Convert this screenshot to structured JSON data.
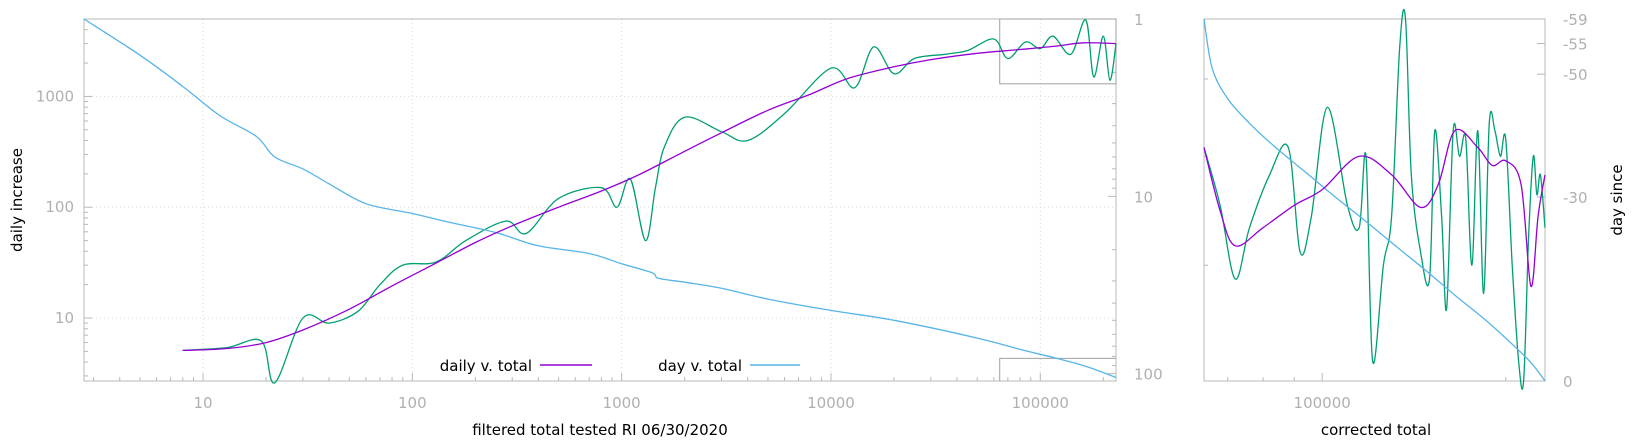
{
  "chart_data": [
    {
      "type": "line",
      "xlabel": "filtered total tested RI 06/30/2020",
      "ylabel": "daily increase",
      "y2label": "",
      "xscale": "log",
      "yscale": "log",
      "y2scale": "log",
      "xlim": [
        2.7,
        230000
      ],
      "ylim": [
        2.7,
        5000
      ],
      "y2lim": [
        1,
        110
      ],
      "x_ticks": [
        10,
        100,
        1000,
        10000,
        100000
      ],
      "x_tick_labels": [
        "10",
        "100",
        "1000",
        "10000",
        "100000"
      ],
      "y_ticks": [
        10,
        100,
        1000
      ],
      "y_tick_labels": [
        "10",
        "100",
        "1000"
      ],
      "y2_ticks": [
        1,
        10,
        100
      ],
      "y2_tick_labels": [
        "1",
        "10",
        "100"
      ],
      "grid": true,
      "legend_position": "bottom-center",
      "series": [
        {
          "name": "daily v. total",
          "axis": "left",
          "color": "#9400d3",
          "x": [
            8,
            13,
            20,
            30,
            50,
            80,
            120,
            200,
            300,
            500,
            800,
            1200,
            2000,
            3000,
            5000,
            8000,
            12000,
            20000,
            30000,
            50000,
            80000,
            120000,
            160000,
            230000
          ],
          "y": [
            5.1,
            5.3,
            6.0,
            7.8,
            12.0,
            19.5,
            29.0,
            48.0,
            68.0,
            100.0,
            140.0,
            195.0,
            320.0,
            470.0,
            750.0,
            1050.0,
            1450.0,
            1850.0,
            2150.0,
            2450.0,
            2650.0,
            2850.0,
            3050.0,
            3000.0
          ]
        },
        {
          "name": "",
          "axis": "left",
          "color": "#009e73",
          "x": [
            8,
            13,
            19,
            22,
            30,
            40,
            55,
            70,
            90,
            130,
            180,
            280,
            350,
            500,
            800,
            950,
            1100,
            1300,
            1450,
            1600,
            2000,
            3000,
            4000,
            6000,
            10000,
            13000,
            16000,
            20000,
            25000,
            35000,
            45000,
            60000,
            70000,
            85000,
            100000,
            115000,
            140000,
            165000,
            180000,
            200000,
            215000,
            230000
          ],
          "y": [
            5.1,
            5.4,
            6.2,
            2.6,
            10.0,
            9.0,
            11.5,
            20.0,
            30.0,
            32.0,
            50.0,
            75.0,
            58.0,
            120.0,
            150.0,
            100.0,
            180.0,
            50.0,
            150.0,
            350.0,
            650.0,
            480.0,
            400.0,
            700.0,
            1800.0,
            1200.0,
            2800.0,
            1600.0,
            2200.0,
            2400.0,
            2600.0,
            3300.0,
            2200.0,
            3100.0,
            2700.0,
            3500.0,
            2400.0,
            4900.0,
            1500.0,
            3500.0,
            1400.0,
            3000.0
          ]
        },
        {
          "name": "day v. total",
          "axis": "right",
          "color": "#56b4e9",
          "x": [
            2.7,
            5,
            8,
            12,
            18,
            22,
            30,
            40,
            60,
            100,
            150,
            250,
            400,
            700,
            1000,
            1400,
            1500,
            2000,
            3000,
            5000,
            10000,
            20000,
            50000,
            80000,
            120000,
            170000,
            230000
          ],
          "y": [
            1,
            1.6,
            2.4,
            3.5,
            4.6,
            6.0,
            7.0,
            8.5,
            11.0,
            12.5,
            14.0,
            16.0,
            19.0,
            21.0,
            24.0,
            27.0,
            29.0,
            30.5,
            33.0,
            38.0,
            44.0,
            50.0,
            63.0,
            73.0,
            82.0,
            92.0,
            105.0
          ]
        }
      ]
    },
    {
      "type": "line",
      "xlabel": "corrected total",
      "ylabel": "",
      "y2label": "day since",
      "xscale": "log",
      "yscale": "log",
      "xlim": [
        64000,
        232000
      ],
      "ylim": [
        1300,
        5000
      ],
      "y2lim": [
        -59,
        0
      ],
      "x_ticks": [
        100000
      ],
      "x_tick_labels": [
        "100000"
      ],
      "y2_ticks": [
        -59,
        -55,
        -50,
        -30,
        0
      ],
      "y2_tick_labels": [
        "-59",
        "-55",
        "-50",
        "-30",
        "0"
      ],
      "grid": false,
      "series": [
        {
          "name": "",
          "axis": "left",
          "color": "#9400d3",
          "x": [
            64000,
            68000,
            72000,
            80000,
            90000,
            100000,
            115000,
            130000,
            145000,
            155000,
            165000,
            180000,
            190000,
            200000,
            212000,
            220000,
            226000,
            232000
          ],
          "y": [
            3100,
            2450,
            2150,
            2300,
            2500,
            2650,
            3000,
            2800,
            2480,
            2700,
            3300,
            3100,
            2900,
            2950,
            2700,
            1850,
            2400,
            2800
          ]
        },
        {
          "name": "",
          "axis": "left",
          "color": "#009e73",
          "x": [
            64000,
            68000,
            72000,
            76000,
            82000,
            88000,
            92000,
            96000,
            102000,
            110000,
            115000,
            118000,
            121000,
            126000,
            130000,
            134000,
            137000,
            140000,
            145000,
            150000,
            153000,
            157000,
            160000,
            164000,
            168000,
            172000,
            176000,
            180000,
            184000,
            188000,
            192000,
            196000,
            200000,
            205000,
            210000,
            214000,
            218000,
            222000,
            225000,
            228000,
            232000
          ],
          "y": [
            3100,
            2500,
            1900,
            2300,
            2800,
            3100,
            2100,
            2400,
            3600,
            2500,
            2300,
            3000,
            1400,
            2000,
            2400,
            4500,
            5000,
            2800,
            2100,
            1900,
            3300,
            2400,
            1700,
            3300,
            3000,
            3200,
            2000,
            3300,
            1800,
            3400,
            3300,
            3000,
            3200,
            2000,
            1400,
            1300,
            2200,
            3000,
            2600,
            2800,
            2300
          ]
        },
        {
          "name": "",
          "axis": "right",
          "color": "#56b4e9",
          "x": [
            64000,
            66000,
            70000,
            76000,
            84000,
            94000,
            105000,
            118000,
            132000,
            148000,
            165000,
            185000,
            205000,
            220000,
            232000
          ],
          "y2": [
            -59,
            -51,
            -46,
            -42,
            -38,
            -34,
            -30,
            -26,
            -22,
            -18,
            -14,
            -10,
            -6,
            -3,
            0
          ]
        }
      ]
    }
  ]
}
